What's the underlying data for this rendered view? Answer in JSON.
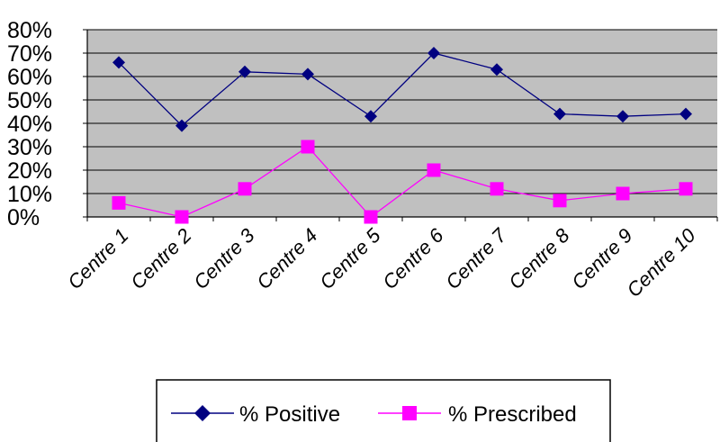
{
  "chart_data": {
    "type": "line",
    "categories": [
      "Centre 1",
      "Centre 2",
      "Centre 3",
      "Centre 4",
      "Centre 5",
      "Centre 6",
      "Centre 7",
      "Centre 8",
      "Centre 9",
      "Centre 10"
    ],
    "y_ticks": [
      "0%",
      "10%",
      "20%",
      "30%",
      "40%",
      "50%",
      "60%",
      "70%",
      "80%"
    ],
    "ylim": [
      0,
      80
    ],
    "grid": true,
    "legend_position": "bottom",
    "series": [
      {
        "name": "% Positive",
        "color": "#000080",
        "marker": "diamond",
        "values": [
          66,
          39,
          62,
          61,
          43,
          70,
          63,
          44,
          43,
          44
        ]
      },
      {
        "name": "% Prescribed",
        "color": "#ff00ff",
        "marker": "square",
        "values": [
          6,
          0,
          12,
          30,
          0,
          20,
          12,
          7,
          10,
          12
        ]
      }
    ],
    "plot_background": "#c0c0c0"
  }
}
